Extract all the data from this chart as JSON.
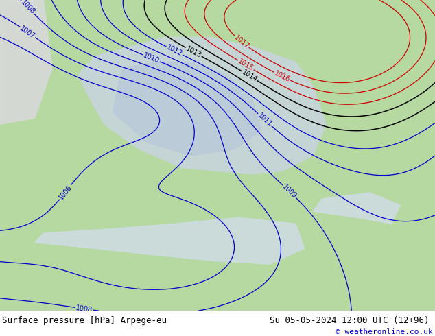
{
  "title_left": "Surface pressure [hPa] Arpege-eu",
  "title_right": "Su 05-05-2024 12:00 UTC (12+96)",
  "copyright": "© weatheronline.co.uk",
  "bg_color": "#ffffff",
  "land_color": "#b5d9a0",
  "sea_color_light": "#e0eaf0",
  "low_area_color": "#c5d5e5",
  "footer_text_color": "#000000",
  "copyright_color": "#0000cc",
  "title_fontsize": 9,
  "copyright_fontsize": 8,
  "contour_blue": "#0000cc",
  "contour_red": "#cc0000",
  "contour_black": "#000000",
  "label_fontsize": 7,
  "figsize": [
    6.34,
    4.9
  ],
  "dpi": 100
}
